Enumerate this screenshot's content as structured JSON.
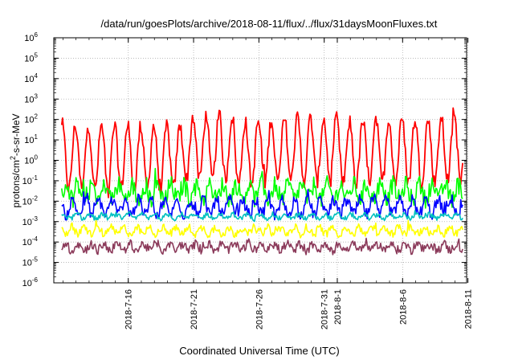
{
  "chart_data": {
    "type": "line",
    "title": "/data/run/goesPlots/archive/2018-08-11/flux/../flux/31daysMoonFluxes.txt",
    "xlabel": "Coordinated Universal Time (UTC)",
    "ylabel_main": "protons/cm",
    "ylabel_sup": "2",
    "ylabel_rest": "-s-sr-MeV",
    "yscale": "log",
    "ylim_exp": [
      -6,
      6
    ],
    "ytick_base": "10",
    "ytick_exps": [
      "-6",
      "-5",
      "-4",
      "-3",
      "-2",
      "-1",
      "0",
      "1",
      "2",
      "3",
      "4",
      "5",
      "6"
    ],
    "xlim_days": [
      -2.7,
      28.9
    ],
    "xtick_labels": [
      {
        "day": 3,
        "label": "2018-7-16"
      },
      {
        "day": 8,
        "label": "2018-7-21"
      },
      {
        "day": 13,
        "label": "2018-7-26"
      },
      {
        "day": 18,
        "label": "2018-7-31"
      },
      {
        "day": 19,
        "label": "2018-8-1"
      },
      {
        "day": 24,
        "label": "2018-8-6"
      },
      {
        "day": 29,
        "label": "2018-8-11"
      }
    ],
    "grid": true,
    "series": [
      {
        "color": "#ff0000",
        "base": 0.15,
        "amp": 1.55,
        "phase": 0.3,
        "noise": 0.35,
        "trend": [
          0,
          0,
          0,
          0,
          0,
          0.45,
          0.45,
          0.2,
          0.3,
          0.4,
          0.35,
          0.2,
          0.35,
          0.3,
          0.3,
          0.45
        ]
      },
      {
        "color": "#00ff00",
        "base": -1.55,
        "amp": 0.35,
        "phase": 0.0,
        "noise": 0.45,
        "trend": [
          0
        ]
      },
      {
        "color": "#0000ff",
        "base": -2.3,
        "amp": 0.35,
        "phase": 0.5,
        "noise": 0.3,
        "trend": [
          0
        ]
      },
      {
        "color": "#00c0c0",
        "base": -2.75,
        "amp": 0.1,
        "phase": 0.2,
        "noise": 0.12,
        "trend": [
          0
        ]
      },
      {
        "color": "#ffff00",
        "base": -3.45,
        "amp": 0.15,
        "phase": 0.6,
        "noise": 0.2,
        "trend": [
          0
        ]
      },
      {
        "color": "#8b3a5a",
        "base": -4.25,
        "amp": 0.15,
        "phase": 0.1,
        "noise": 0.22,
        "trend": [
          0
        ]
      }
    ]
  }
}
